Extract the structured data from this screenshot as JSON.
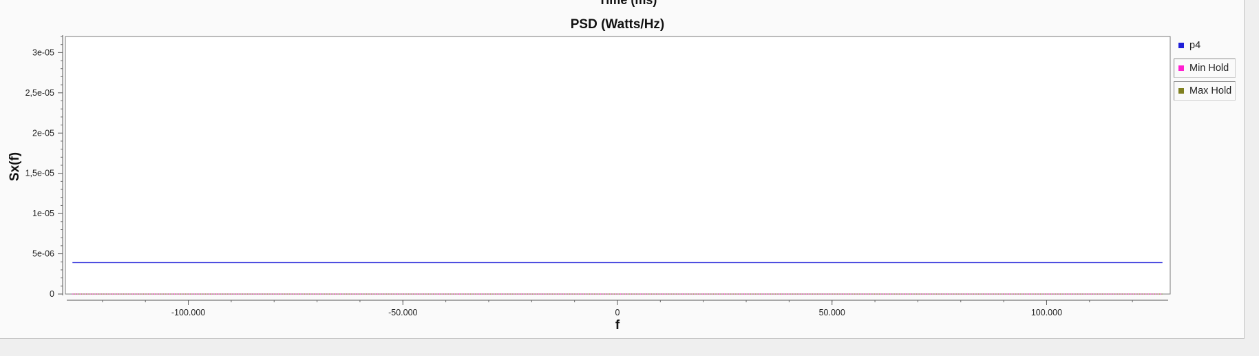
{
  "above_title": "Time (ms)",
  "chart_data": {
    "type": "line",
    "title": "PSD (Watts/Hz)",
    "xlabel": "f",
    "ylabel": "Sx(f)",
    "xlim": [
      -128000,
      128000
    ],
    "ylim": [
      0,
      3.2e-05
    ],
    "xticks": [
      {
        "value": -100000,
        "label": "-100.000"
      },
      {
        "value": -50000,
        "label": "-50.000"
      },
      {
        "value": 0,
        "label": "0"
      },
      {
        "value": 50000,
        "label": "50.000"
      },
      {
        "value": 100000,
        "label": "100.000"
      }
    ],
    "yticks": [
      {
        "value": 0,
        "label": "0"
      },
      {
        "value": 5e-06,
        "label": "5e-06"
      },
      {
        "value": 1e-05,
        "label": "1e-05"
      },
      {
        "value": 1.5e-05,
        "label": "1,5e-05"
      },
      {
        "value": 2e-05,
        "label": "2e-05"
      },
      {
        "value": 2.5e-05,
        "label": "2,5e-05"
      },
      {
        "value": 3e-05,
        "label": "3e-05"
      }
    ],
    "grid": false,
    "legend_position": "right",
    "series": [
      {
        "name": "p4",
        "color": "#1f1fd8",
        "style": "solid",
        "x": [
          -127000,
          127000
        ],
        "y": [
          3.9e-06,
          3.9e-06
        ]
      },
      {
        "name": "Min Hold",
        "color": "#ff1fd0",
        "style": "dotted",
        "x": [
          -127000,
          127000
        ],
        "y": [
          0,
          0
        ]
      },
      {
        "name": "Max Hold",
        "color": "#808020",
        "style": "dotted",
        "x": [
          -127000,
          127000
        ],
        "y": [
          0,
          0
        ]
      }
    ]
  }
}
